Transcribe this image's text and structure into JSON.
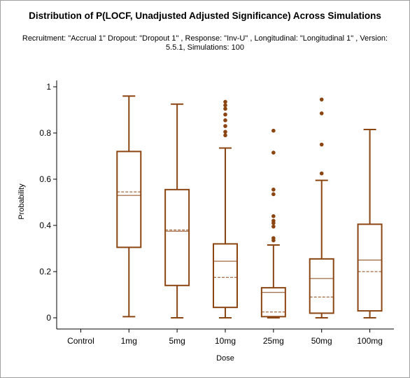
{
  "chart_data": {
    "type": "boxplot",
    "title": "Distribution of P(LOCF, Unadjusted Adjusted Significance) Across Simulations",
    "subtitle": "Recruitment: \"Accrual 1\" Dropout: \"Dropout 1\" , Response: \"Inv-U\" , Longitudinal: \"Longitudinal 1\" , Version: 5.5.1, Simulations: 100",
    "xlabel": "Dose",
    "ylabel": "Probability",
    "ylim": [
      0,
      1
    ],
    "yticks": [
      "0",
      "0.2",
      "0.4",
      "0.6",
      "0.8",
      "1"
    ],
    "categories": [
      "Control",
      "1mg",
      "5mg",
      "10mg",
      "25mg",
      "50mg",
      "100mg"
    ],
    "color": "#8b4513",
    "boxes": [
      null,
      {
        "whisker_low": 0.005,
        "q1": 0.305,
        "median": 0.53,
        "mean": 0.545,
        "q3": 0.72,
        "whisker_high": 0.96,
        "outliers": []
      },
      {
        "whisker_low": 0.0,
        "q1": 0.14,
        "median": 0.375,
        "mean": 0.38,
        "q3": 0.555,
        "whisker_high": 0.925,
        "outliers": []
      },
      {
        "whisker_low": 0.0,
        "q1": 0.045,
        "median": 0.245,
        "mean": 0.175,
        "q3": 0.32,
        "whisker_high": 0.735,
        "outliers": [
          0.79,
          0.805,
          0.83,
          0.855,
          0.88,
          0.905,
          0.92,
          0.935
        ]
      },
      {
        "whisker_low": 0.0,
        "q1": 0.005,
        "median": 0.11,
        "mean": 0.025,
        "q3": 0.13,
        "whisker_high": 0.315,
        "outliers": [
          0.335,
          0.345,
          0.395,
          0.41,
          0.42,
          0.44,
          0.535,
          0.555,
          0.715,
          0.81
        ]
      },
      {
        "whisker_low": 0.0,
        "q1": 0.02,
        "median": 0.17,
        "mean": 0.09,
        "q3": 0.255,
        "whisker_high": 0.595,
        "outliers": [
          0.625,
          0.75,
          0.885,
          0.945
        ]
      },
      {
        "whisker_low": 0.0,
        "q1": 0.03,
        "median": 0.25,
        "mean": 0.2,
        "q3": 0.405,
        "whisker_high": 0.815,
        "outliers": []
      }
    ]
  }
}
